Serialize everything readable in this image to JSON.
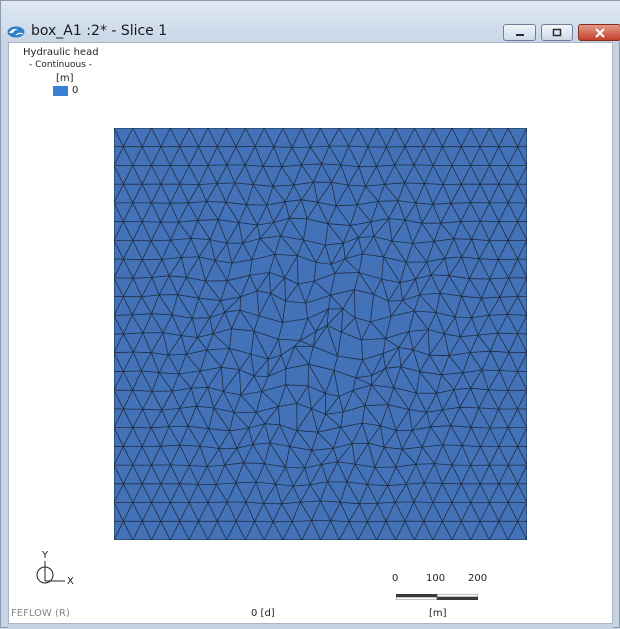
{
  "window": {
    "title": "box_A1 :2* - Slice 1",
    "icons": {
      "app": "feflow-wave-icon",
      "minimize": "minimize-icon",
      "maximize": "maximize-icon",
      "close": "close-icon"
    }
  },
  "legend": {
    "title": "Hydraulic head",
    "mode": "- Continuous -",
    "unit": "[m]",
    "entries": [
      {
        "value": "0",
        "color": "#3a7fd6"
      }
    ]
  },
  "mesh": {
    "fill_color": "#4472b8",
    "line_color": "#1e2e44"
  },
  "axis": {
    "y_label": "Y",
    "x_label": "X"
  },
  "scale": {
    "ticks": [
      "0",
      "100",
      "200"
    ],
    "unit": "[m]"
  },
  "footer": {
    "brand": "FEFLOW (R)",
    "time": "0 [d]"
  }
}
